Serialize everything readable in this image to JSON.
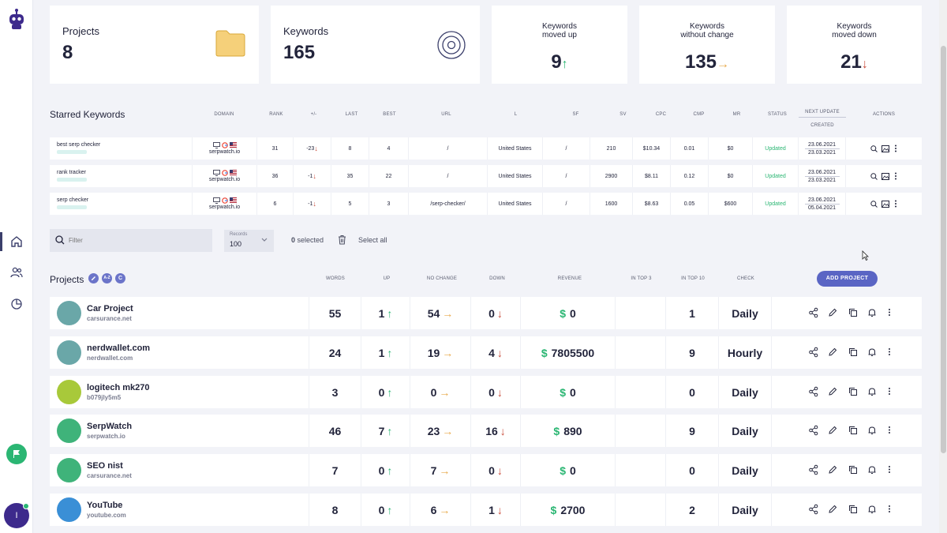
{
  "stats": {
    "projects": {
      "label": "Projects",
      "value": "8"
    },
    "keywords": {
      "label": "Keywords",
      "value": "165"
    },
    "moved_up": {
      "label": "Keywords\nmoved up",
      "value": "9",
      "arrow": "↑"
    },
    "no_change": {
      "label": "Keywords\nwithout change",
      "value": "135",
      "arrow": "→"
    },
    "moved_down": {
      "label": "Keywords\nmoved down",
      "value": "21",
      "arrow": "↓"
    }
  },
  "starred": {
    "title": "Starred Keywords",
    "headers": {
      "domain": "DOMAIN",
      "rank": "RANK",
      "diff": "+/-",
      "last": "LAST",
      "best": "BEST",
      "url": "URL",
      "l": "L",
      "sf": "SF",
      "sv": "SV",
      "cpc": "CPC",
      "cmp": "CMP",
      "mr": "MR",
      "status": "STATUS",
      "next_update": "NEXT UPDATE",
      "created": "CREATED",
      "actions": "ACTIONS"
    },
    "rows": [
      {
        "keyword": "best serp checker",
        "domain": "serpwatch.io",
        "rank": "31",
        "diff": "-23",
        "last": "8",
        "best": "4",
        "url": "/",
        "location": "United States",
        "sf": "/",
        "sv": "210",
        "cpc": "$10.34",
        "cmp": "0.01",
        "mr": "$0",
        "status": "Updated",
        "next_update": "23.06.2021",
        "created": "23.03.2021"
      },
      {
        "keyword": "rank tracker",
        "domain": "serpwatch.io",
        "rank": "36",
        "diff": "-1",
        "last": "35",
        "best": "22",
        "url": "/",
        "location": "United States",
        "sf": "/",
        "sv": "2900",
        "cpc": "$8.11",
        "cmp": "0.12",
        "mr": "$0",
        "status": "Updated",
        "next_update": "23.06.2021",
        "created": "23.03.2021"
      },
      {
        "keyword": "serp checker",
        "domain": "serpwatch.io",
        "rank": "6",
        "diff": "-1",
        "last": "5",
        "best": "3",
        "url": "/serp-checker/",
        "location": "United States",
        "sf": "/",
        "sv": "1600",
        "cpc": "$8.63",
        "cmp": "0.05",
        "mr": "$600",
        "status": "Updated",
        "next_update": "23.06.2021",
        "created": "05.04.2021"
      }
    ]
  },
  "filter": {
    "placeholder": "Filter",
    "records_label": "Records",
    "records_value": "100",
    "selected_count": "0",
    "selected_label": "selected",
    "select_all": "Select all"
  },
  "projects": {
    "title": "Projects",
    "badges": [
      "A-Z",
      "C"
    ],
    "add_button": "ADD PROJECT",
    "headers": {
      "words": "WORDS",
      "up": "UP",
      "no_change": "NO CHANGE",
      "down": "DOWN",
      "revenue": "REVENUE",
      "top3": "IN TOP 3",
      "top10": "IN TOP 10",
      "check": "CHECK"
    },
    "rows": [
      {
        "name": "Car Project",
        "url": "carsurance.net",
        "words": "55",
        "up": "1",
        "no_change": "54",
        "down": "0",
        "revenue": "0",
        "top3": "",
        "top10": "1",
        "check": "Daily",
        "avatar_color": "#6aa7a8"
      },
      {
        "name": "nerdwallet.com",
        "url": "nerdwallet.com",
        "words": "24",
        "up": "1",
        "no_change": "19",
        "down": "4",
        "revenue": "7805500",
        "top3": "",
        "top10": "9",
        "check": "Hourly",
        "avatar_color": "#6aa7a8"
      },
      {
        "name": "logitech mk270",
        "url": "b079jly5m5",
        "words": "3",
        "up": "0",
        "no_change": "0",
        "down": "0",
        "revenue": "0",
        "top3": "",
        "top10": "0",
        "check": "Daily",
        "avatar_color": "#a8c93a"
      },
      {
        "name": "SerpWatch",
        "url": "serpwatch.io",
        "words": "46",
        "up": "7",
        "no_change": "23",
        "down": "16",
        "revenue": "890",
        "top3": "",
        "top10": "9",
        "check": "Daily",
        "avatar_color": "#3fb37a"
      },
      {
        "name": "SEO nist",
        "url": "carsurance.net",
        "words": "7",
        "up": "0",
        "no_change": "7",
        "down": "0",
        "revenue": "0",
        "top3": "",
        "top10": "0",
        "check": "Daily",
        "avatar_color": "#3fb37a"
      },
      {
        "name": "YouTube",
        "url": "youtube.com",
        "words": "8",
        "up": "0",
        "no_change": "6",
        "down": "1",
        "revenue": "2700",
        "top3": "",
        "top10": "2",
        "check": "Daily",
        "avatar_color": "#3a8fd6"
      }
    ]
  },
  "arrows": {
    "up": "↑",
    "right": "→",
    "down": "↓"
  },
  "currency": "$",
  "user_initial": "I"
}
